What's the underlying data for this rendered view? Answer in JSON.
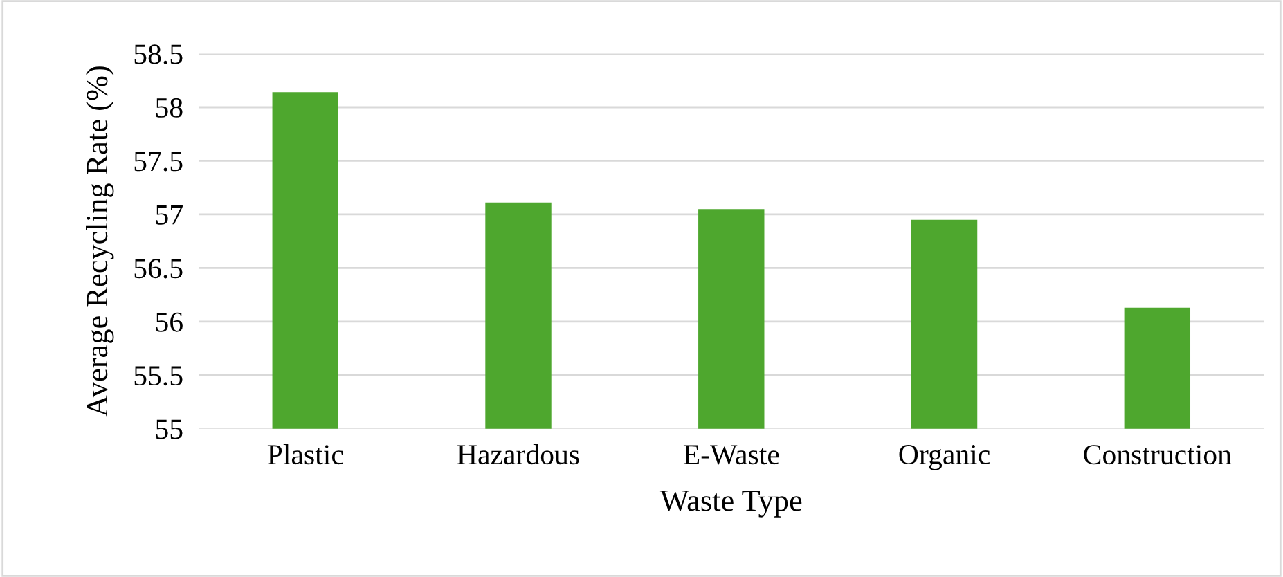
{
  "chart_data": {
    "type": "bar",
    "xlabel": "Waste Type",
    "ylabel": "Average Recycling Rate (%)",
    "categories": [
      "Plastic",
      "Hazardous",
      "E-Waste",
      "Organic",
      "Construction"
    ],
    "values": [
      58.14,
      57.11,
      57.05,
      56.95,
      56.13
    ],
    "color": "#4ea72e",
    "ylim": [
      55,
      58.5
    ],
    "yticks": [
      55,
      55.5,
      56,
      56.5,
      57,
      57.5,
      58,
      58.5
    ],
    "grid": "y"
  }
}
